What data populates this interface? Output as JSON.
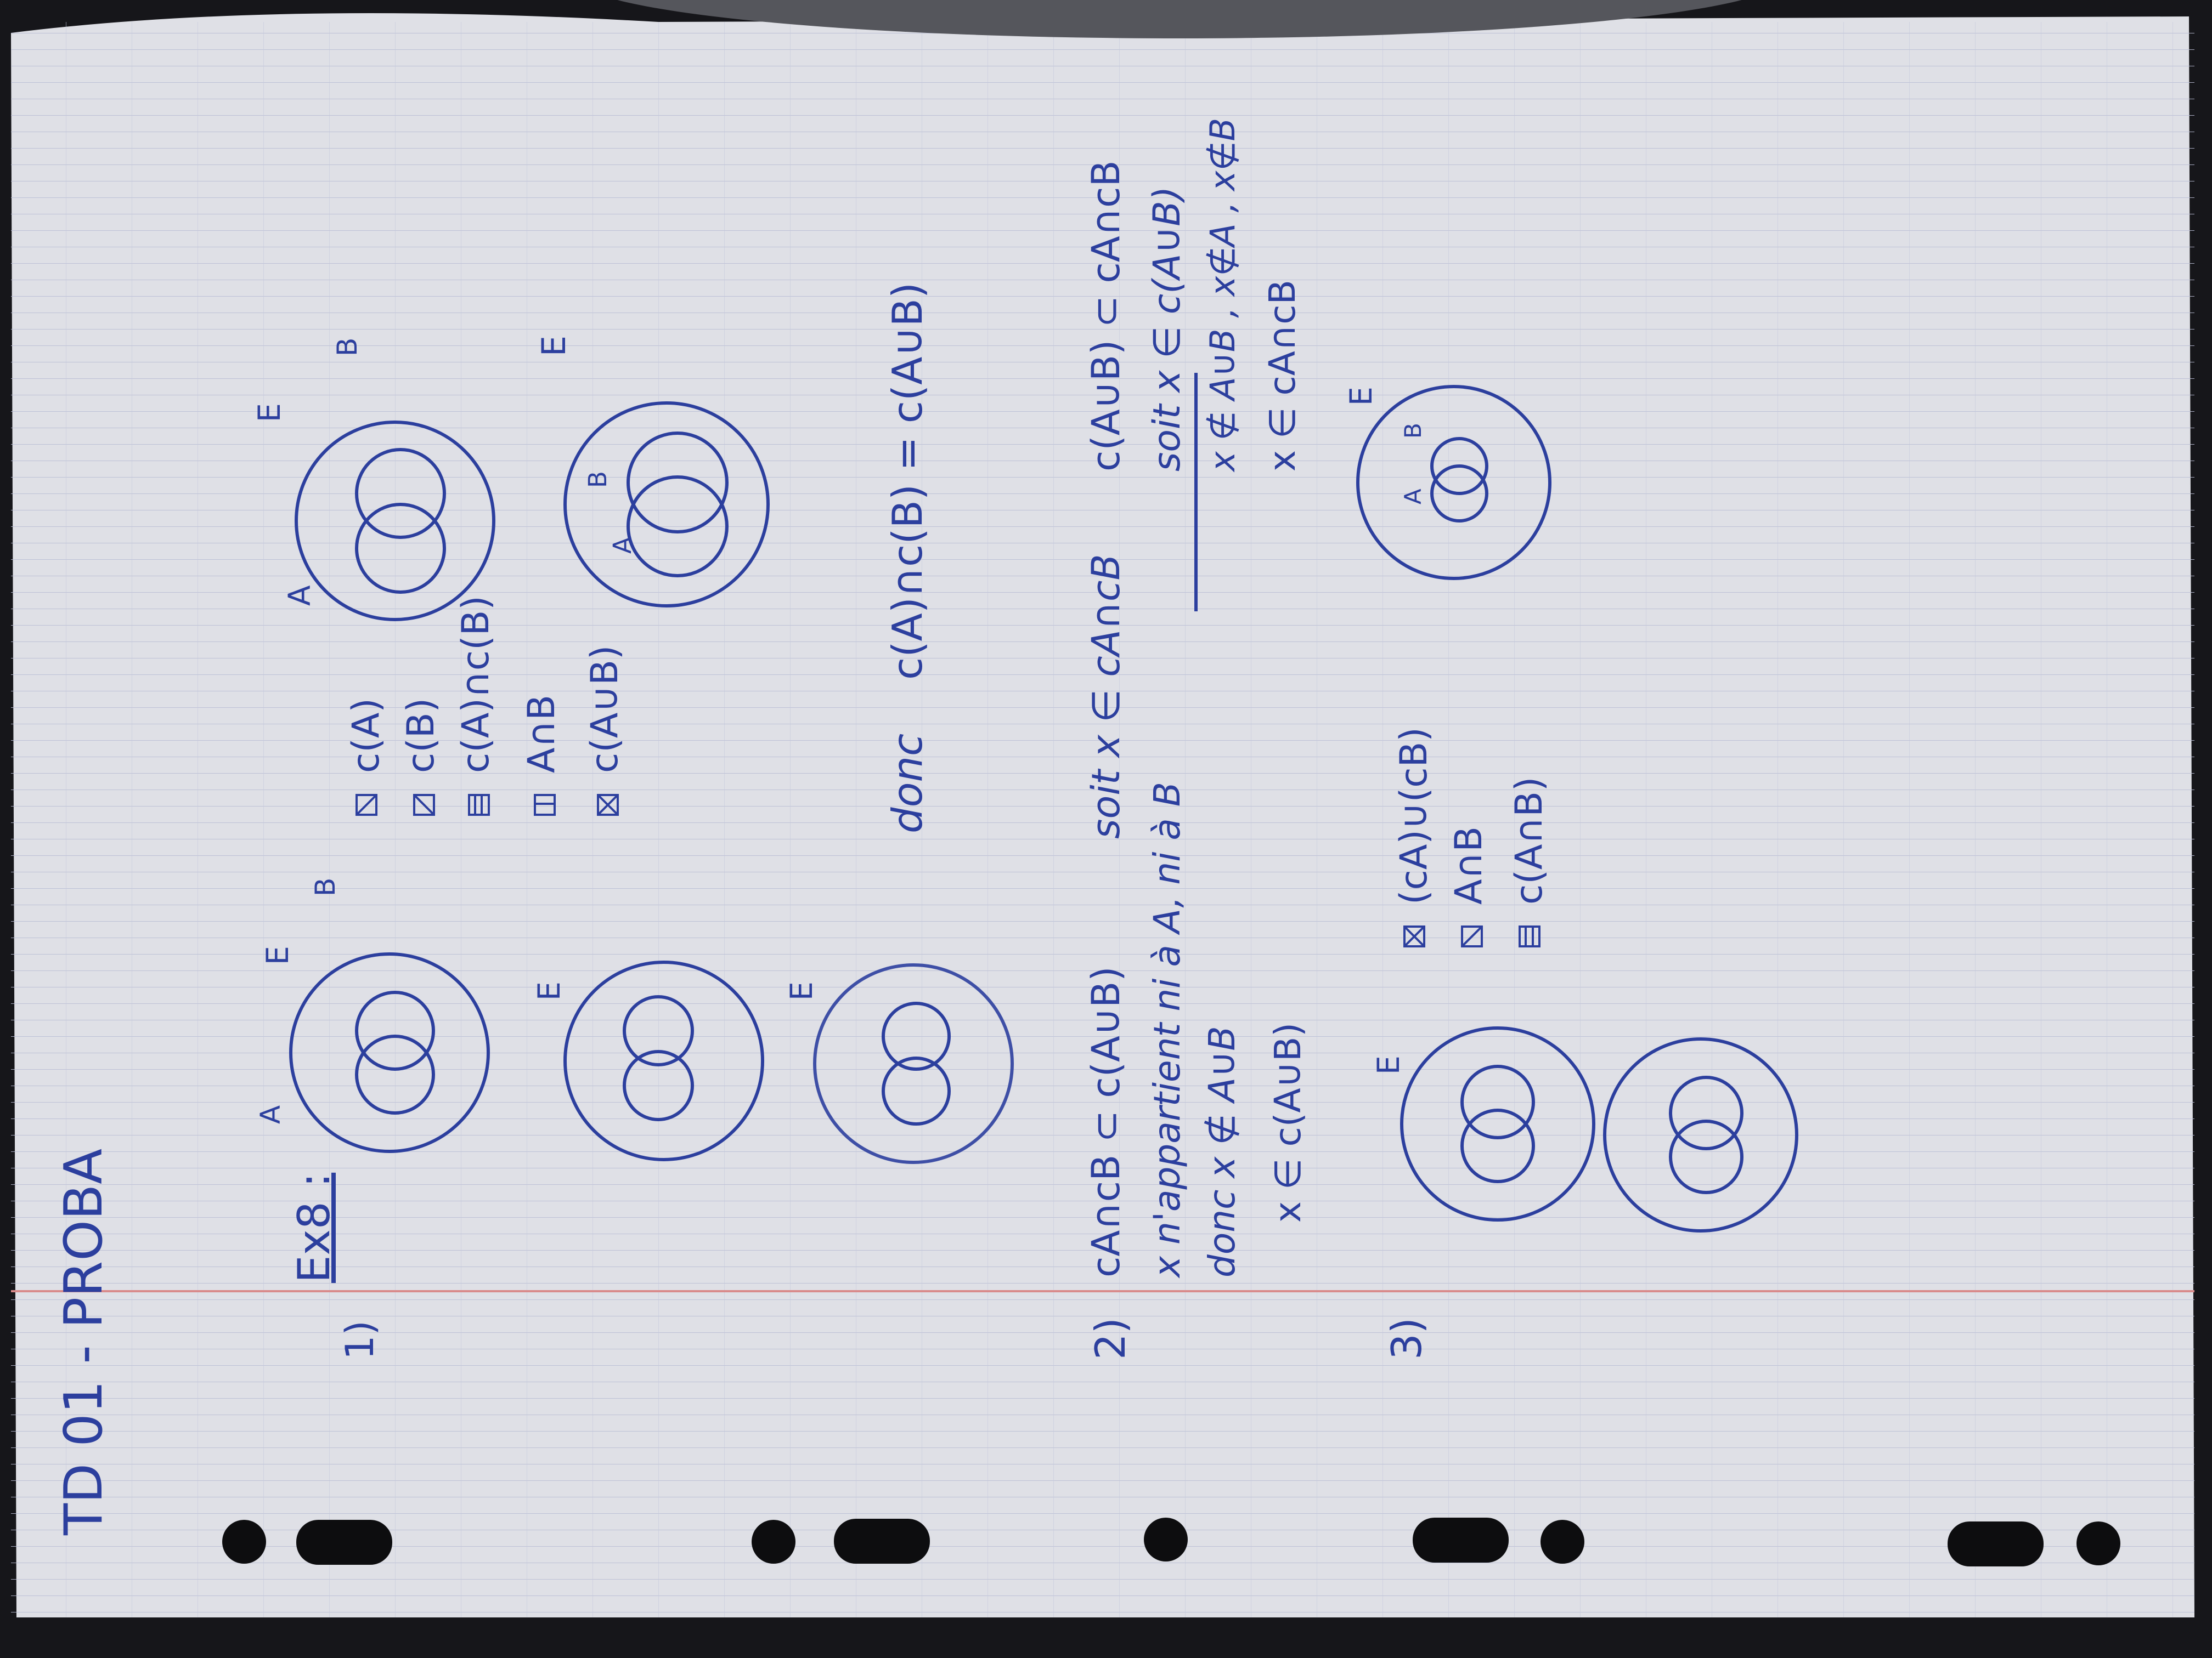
{
  "page": {
    "title": "TD 01 - PROBA",
    "exercise": "Ex8 :",
    "part1": {
      "number": "1)",
      "universe_label": "E",
      "set_a_label": "A",
      "set_b_label": "B",
      "legend": [
        "c(A)",
        "c(B)",
        "c(A)∩c(B)",
        "A∩B",
        "c(A∪B)"
      ],
      "conclusion_prefix": "donc",
      "conclusion": "c(A)∩c(B) = c(A∪B)"
    },
    "part2": {
      "number": "2)",
      "left_lines": [
        "cA∩cB ⊂ c(A∪B)",
        "x n'appartient ni à A, ni à B",
        "donc x ∉ A∪B",
        "x ∈ c(A∪B)"
      ],
      "middle_line": "soit x ∈ cA∩cB",
      "right_lines": [
        "c(A∪B) ⊂ cA∩cB",
        "soit x ∈ c(A∪B)",
        "x ∉ A∪B , x∉A , x∉B",
        "x ∈ cA∩cB"
      ]
    },
    "part3": {
      "number": "3)",
      "universe_label": "E",
      "set_a_label": "A",
      "set_b_label": "B",
      "legend": [
        "(cA)∪(cB)",
        "A∩B",
        "c(A∩B)"
      ]
    }
  }
}
